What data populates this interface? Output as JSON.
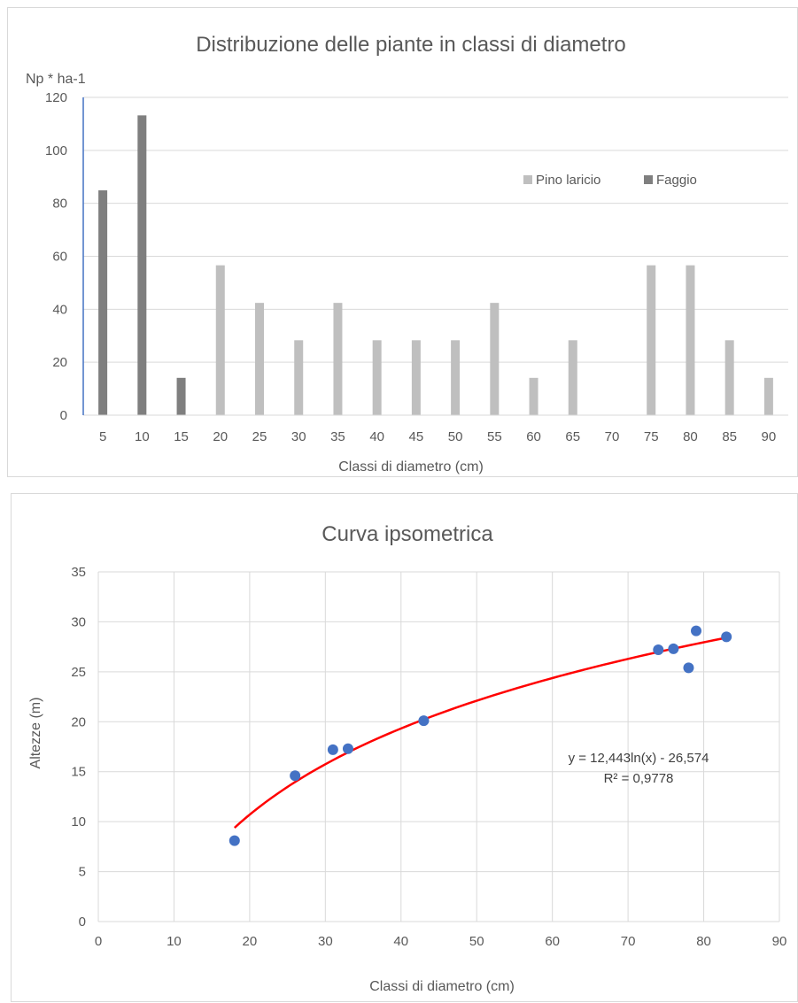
{
  "chart_data": [
    {
      "type": "bar",
      "title": "Distribuzione delle piante in classi di diametro",
      "ylabel": "Np * ha-1",
      "xlabel": "Classi di diametro (cm)",
      "ylim": [
        0,
        120
      ],
      "yticks": [
        0,
        20,
        40,
        60,
        80,
        100,
        120
      ],
      "grid": true,
      "legend_position": "right",
      "categories": [
        "5",
        "10",
        "15",
        "20",
        "25",
        "30",
        "35",
        "40",
        "45",
        "50",
        "55",
        "60",
        "65",
        "70",
        "75",
        "80",
        "85",
        "90"
      ],
      "series": [
        {
          "name": "Pino laricio",
          "color": "#bfbfbf",
          "values": [
            0,
            0,
            0,
            56.6,
            42.4,
            28.3,
            42.4,
            28.3,
            28.3,
            28.3,
            42.4,
            14.1,
            28.3,
            0,
            56.6,
            56.6,
            28.3,
            14.1
          ]
        },
        {
          "name": "Faggio",
          "color": "#7f7f7f",
          "values": [
            84.9,
            113.2,
            14.1,
            0,
            0,
            0,
            0,
            0,
            0,
            0,
            0,
            0,
            0,
            0,
            0,
            0,
            0,
            0
          ]
        }
      ]
    },
    {
      "type": "scatter",
      "title": "Curva ipsometrica",
      "xlabel": "Classi di diametro (cm)",
      "ylabel": "Altezze (m)",
      "xlim": [
        0,
        90
      ],
      "ylim": [
        0,
        35
      ],
      "xticks": [
        0,
        10,
        20,
        30,
        40,
        50,
        60,
        70,
        80,
        90
      ],
      "yticks": [
        0,
        5,
        10,
        15,
        20,
        25,
        30,
        35
      ],
      "grid": true,
      "point_color": "#4472c4",
      "points": [
        {
          "x": 18,
          "y": 8.1
        },
        {
          "x": 26,
          "y": 14.6
        },
        {
          "x": 31,
          "y": 17.2
        },
        {
          "x": 33,
          "y": 17.3
        },
        {
          "x": 43,
          "y": 20.1
        },
        {
          "x": 74,
          "y": 27.2
        },
        {
          "x": 76,
          "y": 27.3
        },
        {
          "x": 78,
          "y": 25.4
        },
        {
          "x": 79,
          "y": 29.1
        },
        {
          "x": 83,
          "y": 28.5
        }
      ],
      "trendline": {
        "type": "logarithmic",
        "a": 12.443,
        "b": -26.574,
        "x_range": [
          18,
          83
        ],
        "color": "#ff0000",
        "equation_label": "y = 12,443ln(x) - 26,574",
        "r2_label": "R² = 0,9778"
      }
    }
  ]
}
